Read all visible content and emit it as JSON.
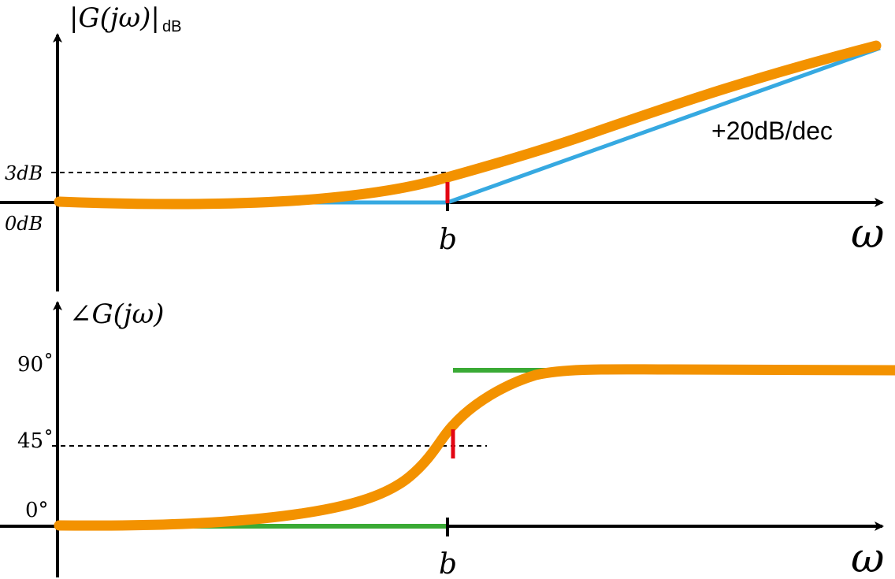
{
  "magnitude_plot": {
    "y_axis_label": "|G(jω)|",
    "y_axis_subscript": "dB",
    "x_axis_label": "ω",
    "tick_3db": "3dB",
    "tick_0db": "0dB",
    "break_label": "b",
    "slope_annotation": "+20dB/dec"
  },
  "phase_plot": {
    "y_axis_label": "∠G(jω)",
    "x_axis_label": "ω",
    "tick_90": "90˚",
    "tick_45": "45˚.",
    "tick_0": "0°",
    "break_label": "b"
  },
  "colors": {
    "exact_curve": "#f39200",
    "asymptote_magnitude": "#36a9e1",
    "asymptote_phase": "#3aaa35",
    "break_marker": "#e30613",
    "axis": "#000000"
  }
}
